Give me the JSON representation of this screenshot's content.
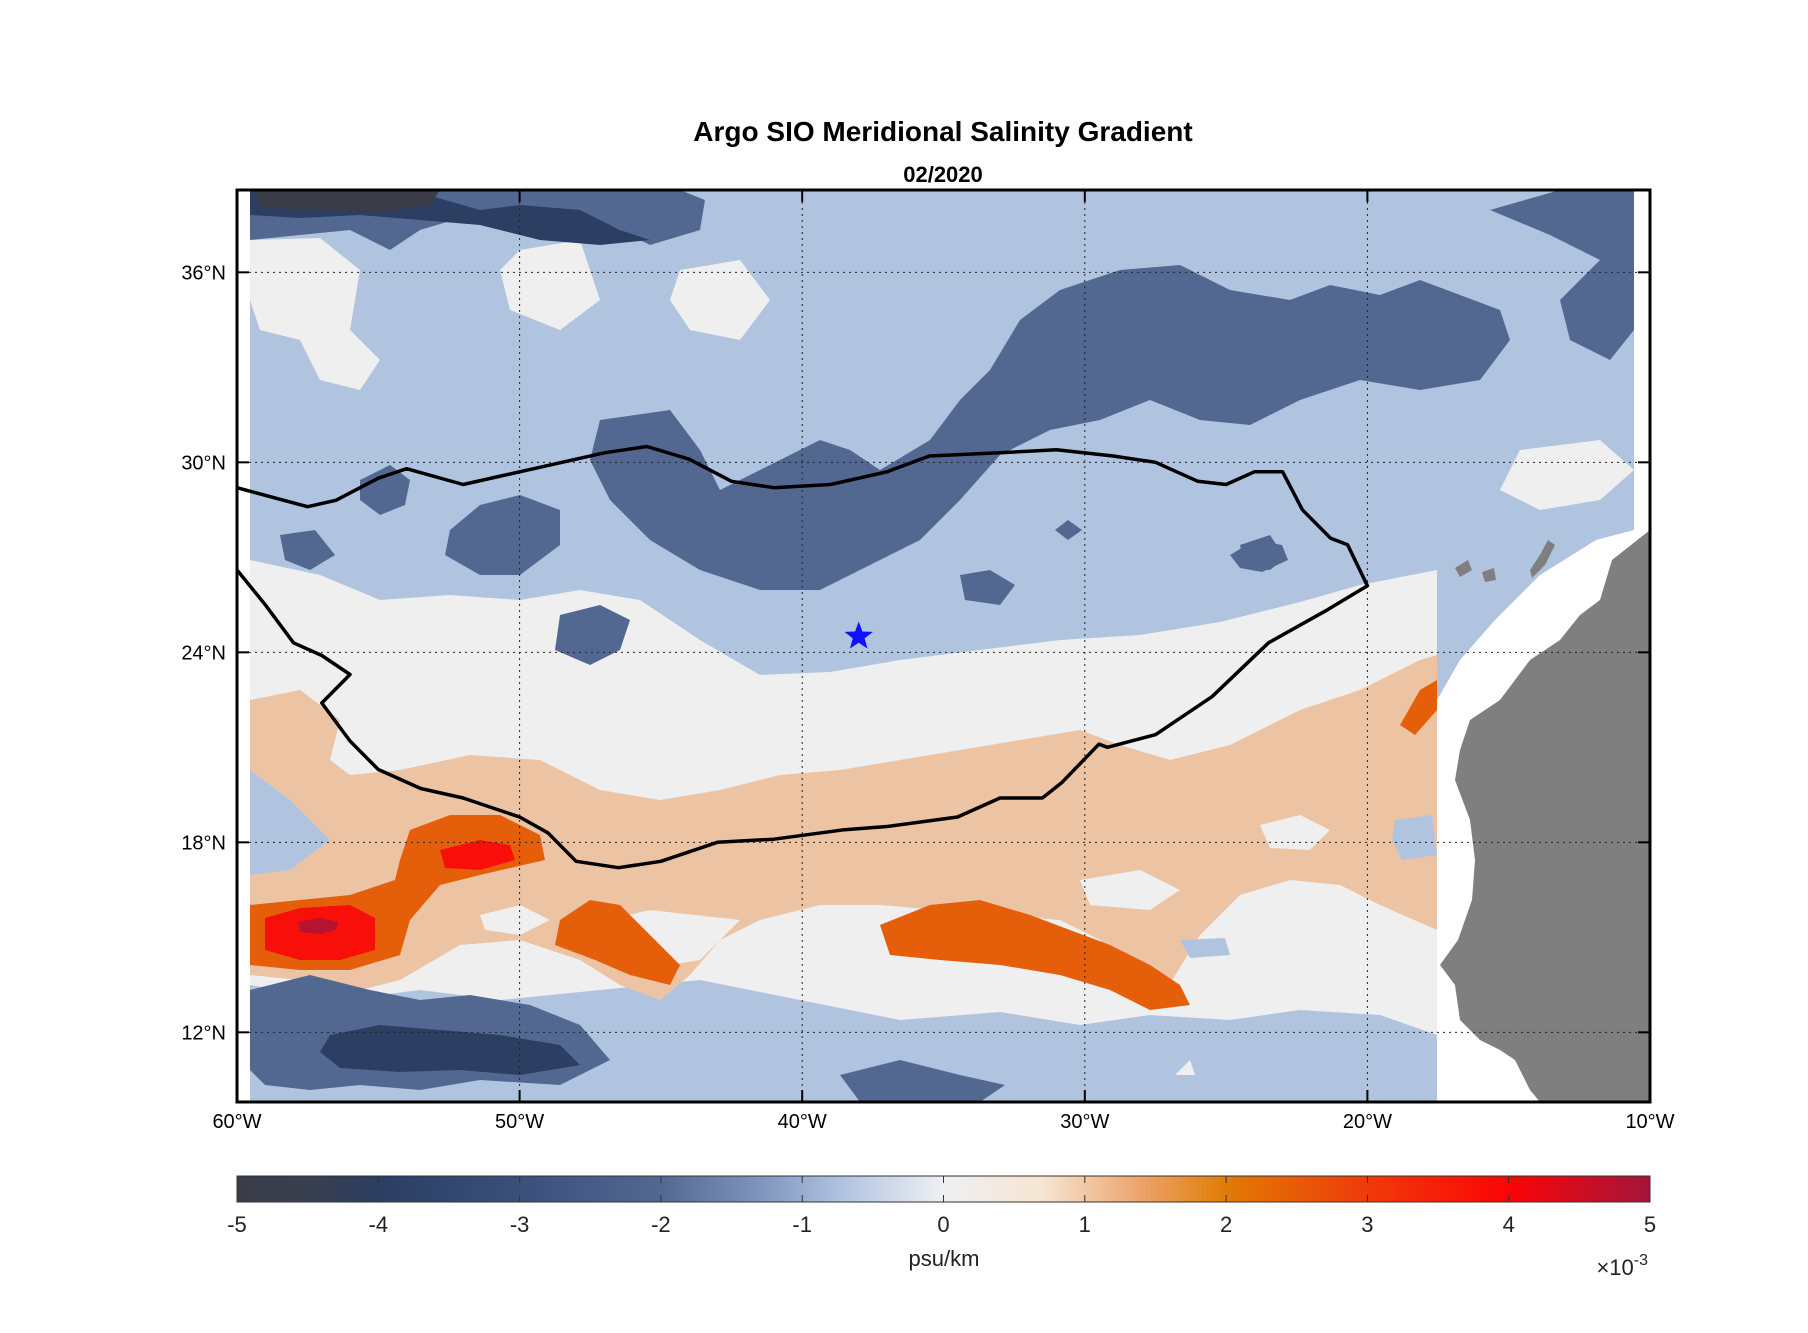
{
  "chart_data": {
    "type": "heatmap",
    "title": "Argo SIO Meridional Salinity Gradient",
    "subtitle": "02/2020",
    "lon_range": [
      -60,
      -10
    ],
    "lat_range": [
      9.8,
      38.6
    ],
    "x_ticks": [
      {
        "value": -60,
        "label": "60°W"
      },
      {
        "value": -50,
        "label": "50°W"
      },
      {
        "value": -40,
        "label": "40°W"
      },
      {
        "value": -30,
        "label": "30°W"
      },
      {
        "value": -20,
        "label": "20°W"
      },
      {
        "value": -10,
        "label": "10°W"
      }
    ],
    "y_ticks": [
      {
        "value": 12,
        "label": "12°N"
      },
      {
        "value": 18,
        "label": "18°N"
      },
      {
        "value": 24,
        "label": "24°N"
      },
      {
        "value": 30,
        "label": "30°N"
      },
      {
        "value": 36,
        "label": "36°N"
      }
    ],
    "grid": true,
    "colorbar": {
      "label": "psu/km",
      "exponent_label": "×10",
      "exponent_power": "-3",
      "range": [
        -5,
        5
      ],
      "ticks": [
        {
          "value": -5,
          "label": "-5"
        },
        {
          "value": -4,
          "label": "-4"
        },
        {
          "value": -3,
          "label": "-3"
        },
        {
          "value": -2,
          "label": "-2"
        },
        {
          "value": -1,
          "label": "-1"
        },
        {
          "value": 0,
          "label": "0"
        },
        {
          "value": 1,
          "label": "1"
        },
        {
          "value": 2,
          "label": "2"
        },
        {
          "value": 3,
          "label": "3"
        },
        {
          "value": 4,
          "label": "4"
        },
        {
          "value": 5,
          "label": "5"
        }
      ]
    },
    "level_colors": {
      "lt_-4": "#3a3d48",
      "-4_to_-3": "#2c3e62",
      "-3_to_-2": "#536891",
      "-2_to_-1": "#b0c4e0",
      "-1_to_1": "#efefef",
      "1_to_2": "#ecc4a3",
      "2_to_3": "#e55f0b",
      "3_to_4": "#f90f0a",
      "gt_4": "#b41430",
      "land": "#7f7f7f"
    },
    "contour_lines": [
      {
        "name": "",
        "points": [
          [
            -60,
            29.2
          ],
          [
            -57.5,
            28.6
          ],
          [
            -56.5,
            28.8
          ],
          [
            -55,
            29.5
          ],
          [
            -54,
            29.8
          ],
          [
            -52,
            29.3
          ],
          [
            -49.5,
            29.8
          ],
          [
            -47,
            30.3
          ],
          [
            -45.5,
            30.5
          ],
          [
            -44,
            30.1
          ],
          [
            -42.5,
            29.4
          ],
          [
            -41,
            29.2
          ],
          [
            -39,
            29.3
          ],
          [
            -37,
            29.7
          ],
          [
            -35.5,
            30.2
          ],
          [
            -33,
            30.3
          ],
          [
            -31,
            30.4
          ],
          [
            -29,
            30.2
          ],
          [
            -27.5,
            30
          ],
          [
            -26,
            29.4
          ],
          [
            -25,
            29.3
          ],
          [
            -24,
            29.7
          ],
          [
            -23,
            29.7
          ],
          [
            -22.3,
            28.5
          ],
          [
            -21.3,
            27.6
          ],
          [
            -20.7,
            27.4
          ],
          [
            -20,
            26.1
          ],
          [
            -21.5,
            25.3
          ],
          [
            -23.5,
            24.3
          ],
          [
            -25.5,
            22.6
          ],
          [
            -27.5,
            21.4
          ],
          [
            -29.2,
            21.0
          ],
          [
            -29.5,
            21.1
          ],
          [
            -30.8,
            19.9
          ],
          [
            -31.5,
            19.4
          ],
          [
            -33,
            19.4
          ],
          [
            -34.5,
            18.8
          ],
          [
            -37,
            18.5
          ],
          [
            -38.5,
            18.4
          ],
          [
            -41,
            18.1
          ],
          [
            -43,
            18.0
          ],
          [
            -45,
            17.4
          ],
          [
            -46.5,
            17.2
          ],
          [
            -48,
            17.4
          ],
          [
            -49,
            18.3
          ],
          [
            -50,
            18.8
          ],
          [
            -52,
            19.4
          ],
          [
            -53.5,
            19.7
          ],
          [
            -55,
            20.3
          ],
          [
            -56,
            21.2
          ],
          [
            -57,
            22.4
          ],
          [
            -56,
            23.3
          ],
          [
            -57,
            23.9
          ],
          [
            -58,
            24.3
          ],
          [
            -59,
            25.5
          ],
          [
            -60,
            26.6
          ]
        ]
      }
    ],
    "marker": {
      "lon": -38,
      "lat": 24.5,
      "symbol": "star",
      "color": "#1010ff"
    }
  }
}
